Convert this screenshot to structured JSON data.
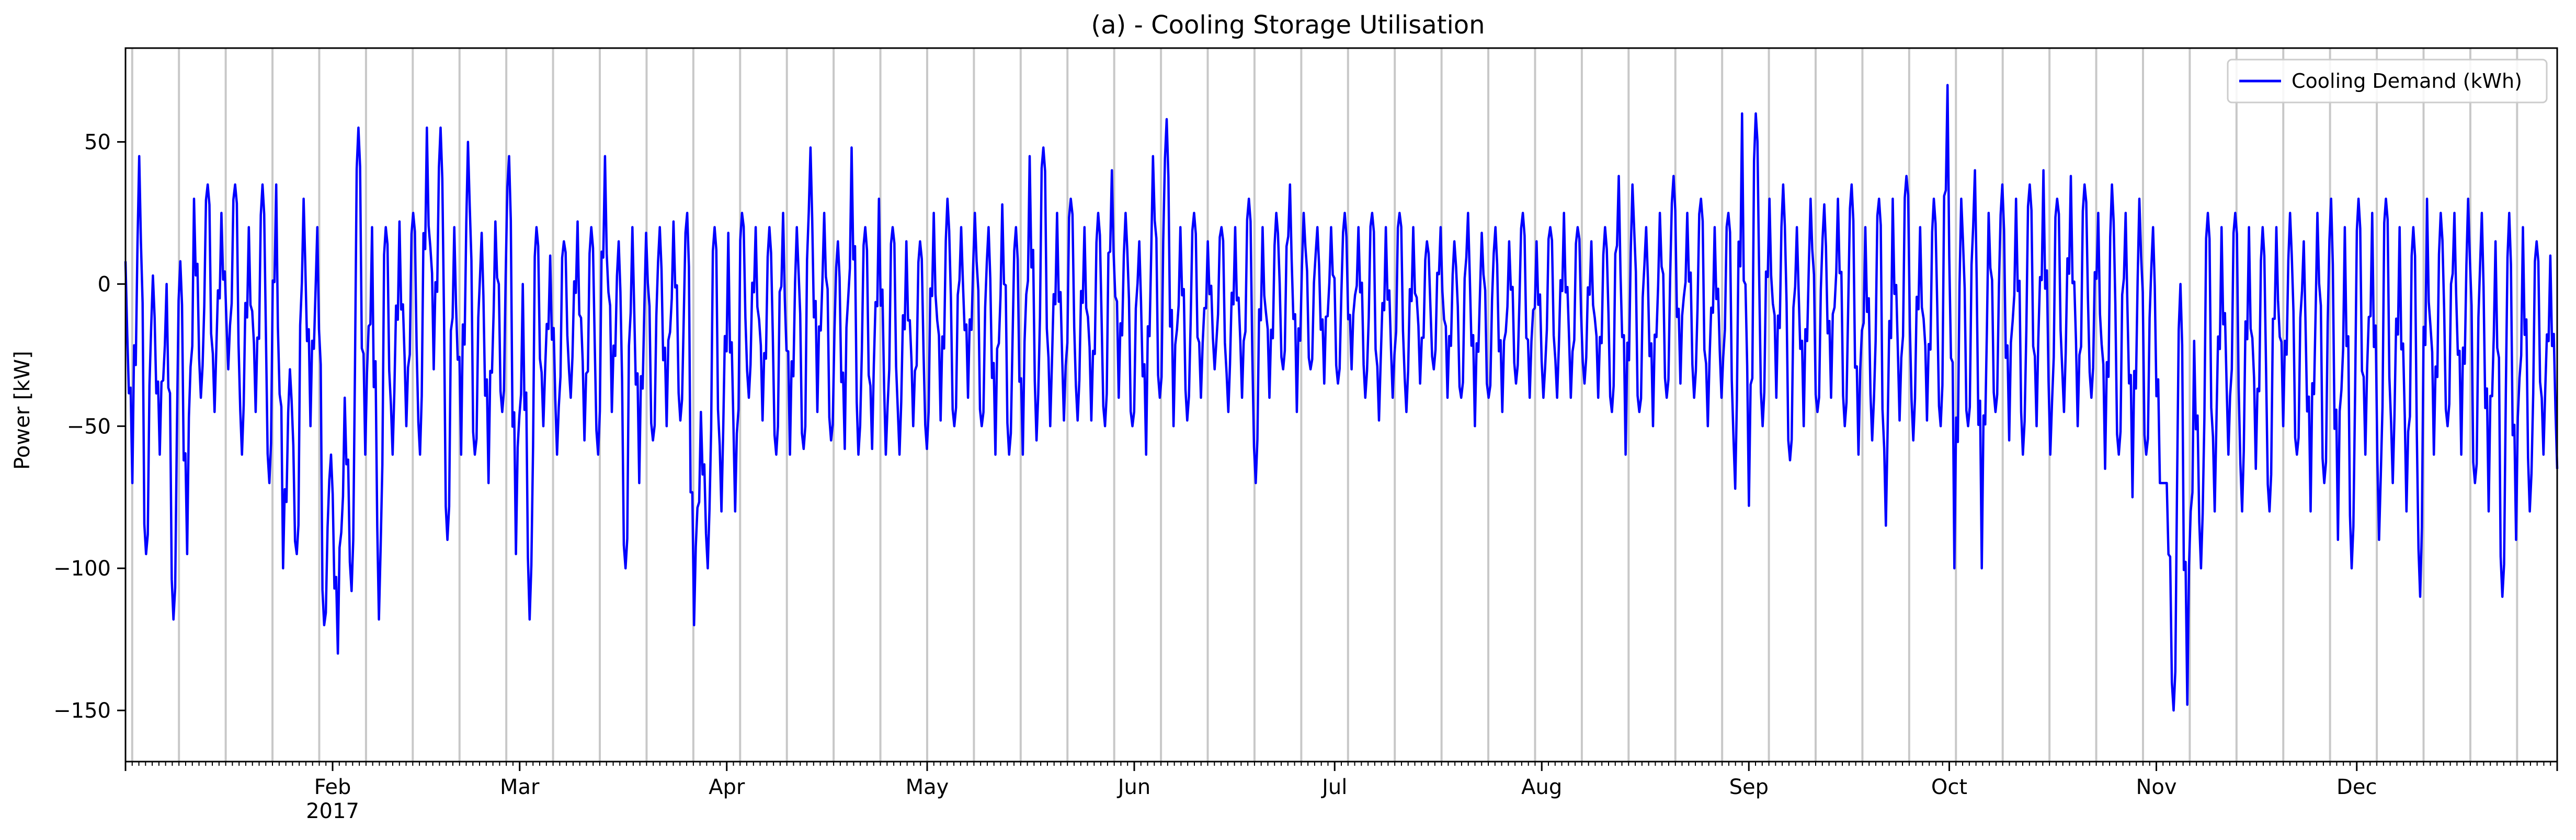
{
  "chart_data": {
    "type": "line",
    "title": "(a) - Cooling Storage Utilisation",
    "xlabel": "",
    "ylabel": "Power [kW]",
    "xlim": [
      "2017-01-01",
      "2017-12-31"
    ],
    "ylim": [
      -168,
      83
    ],
    "x_tick_labels": [
      {
        "date": "2017-02-01",
        "label": "Feb",
        "sublabel": "2017"
      },
      {
        "date": "2017-03-01",
        "label": "Mar"
      },
      {
        "date": "2017-04-01",
        "label": "Apr"
      },
      {
        "date": "2017-05-01",
        "label": "May"
      },
      {
        "date": "2017-06-01",
        "label": "Jun"
      },
      {
        "date": "2017-07-01",
        "label": "Jul"
      },
      {
        "date": "2017-08-01",
        "label": "Aug"
      },
      {
        "date": "2017-09-01",
        "label": "Sep"
      },
      {
        "date": "2017-10-01",
        "label": "Oct"
      },
      {
        "date": "2017-11-01",
        "label": "Nov"
      },
      {
        "date": "2017-12-01",
        "label": "Dec"
      }
    ],
    "y_ticks": [
      50,
      0,
      -50,
      -100,
      -150
    ],
    "y_tick_labels": [
      "50",
      "0",
      "−50",
      "−100",
      "−150"
    ],
    "vertical_gridlines": "weekly (light grey)",
    "legend": {
      "placement": "top-right",
      "entries": [
        "Cooling Demand (kWh)"
      ]
    },
    "series": [
      {
        "name": "Cooling Demand (kWh)",
        "color": "#0000ff",
        "sampling": "approximate daily extremes read from the plot",
        "x_start": "2017-01-01",
        "x_step_days": 0.5,
        "values": [
          8,
          -70,
          45,
          -95,
          3,
          -60,
          0,
          -118,
          8,
          -95,
          30,
          -40,
          35,
          -45,
          25,
          -30,
          35,
          -60,
          20,
          -45,
          35,
          -70,
          35,
          -100,
          -30,
          -95,
          30,
          -50,
          20,
          -120,
          -60,
          -130,
          -40,
          -108,
          55,
          -60,
          20,
          -118,
          20,
          -60,
          22,
          -50,
          25,
          -60,
          55,
          -30,
          55,
          -90,
          20,
          -60,
          50,
          -60,
          18,
          -70,
          22,
          -45,
          45,
          -95,
          0,
          -118,
          20,
          -50,
          10,
          -60,
          15,
          -40,
          22,
          -55,
          20,
          -60,
          45,
          -45,
          15,
          -100,
          20,
          -70,
          18,
          -55,
          20,
          -50,
          22,
          -48,
          25,
          -120,
          -45,
          -100,
          20,
          -80,
          18,
          -80,
          25,
          -40,
          20,
          -48,
          20,
          -60,
          25,
          -60,
          20,
          -58,
          48,
          -45,
          25,
          -55,
          15,
          -58,
          48,
          -60,
          20,
          -58,
          30,
          -60,
          20,
          -60,
          15,
          -50,
          15,
          -58,
          25,
          -48,
          30,
          -50,
          20,
          -40,
          25,
          -50,
          20,
          -60,
          28,
          -60,
          20,
          -60,
          45,
          -55,
          48,
          -50,
          25,
          -48,
          30,
          -48,
          20,
          -48,
          25,
          -50,
          40,
          -40,
          25,
          -50,
          15,
          -60,
          45,
          -40,
          58,
          -50,
          20,
          -48,
          25,
          -40,
          15,
          -30,
          20,
          -45,
          20,
          -40,
          30,
          -70,
          20,
          -40,
          25,
          -30,
          35,
          -45,
          25,
          -30,
          20,
          -35,
          20,
          -35,
          25,
          -30,
          20,
          -40,
          25,
          -48,
          20,
          -40,
          25,
          -45,
          20,
          -35,
          15,
          -30,
          20,
          -40,
          15,
          -40,
          25,
          -50,
          18,
          -40,
          20,
          -45,
          15,
          -35,
          25,
          -40,
          15,
          -40,
          20,
          -40,
          25,
          -40,
          20,
          -35,
          15,
          -40,
          20,
          -45,
          38,
          -60,
          35,
          -45,
          20,
          -50,
          25,
          -40,
          38,
          -35,
          25,
          -40,
          30,
          -50,
          20,
          -40,
          25,
          -72,
          60,
          -78,
          60,
          -50,
          30,
          -40,
          35,
          -62,
          20,
          -50,
          30,
          -45,
          28,
          -40,
          30,
          -50,
          35,
          -60,
          20,
          -55,
          30,
          -85,
          30,
          -48,
          38,
          -55,
          20,
          -48,
          30,
          -50,
          70,
          -100,
          30,
          -50,
          40,
          -100,
          25,
          -45,
          35,
          -55,
          30,
          -60,
          35,
          -50,
          40,
          -60,
          30,
          -45,
          38,
          -50,
          35,
          -40,
          25,
          -65,
          35,
          -60,
          25,
          -75,
          30,
          -60,
          20,
          -70,
          -70,
          -150,
          0,
          -148,
          -20,
          -100,
          25,
          -80,
          20,
          -60,
          25,
          -80,
          20,
          -65,
          20,
          -80,
          20,
          -50,
          25,
          -60,
          15,
          -80,
          25,
          -70,
          30,
          -90,
          20,
          -100,
          30,
          -60,
          25,
          -90,
          30,
          -70,
          20,
          -80,
          20,
          -110,
          30,
          -60,
          25,
          -50,
          25,
          -60,
          30,
          -70,
          25,
          -80,
          15,
          -110,
          25,
          -90,
          20,
          -80,
          15,
          -60,
          10,
          -65
        ]
      }
    ]
  }
}
